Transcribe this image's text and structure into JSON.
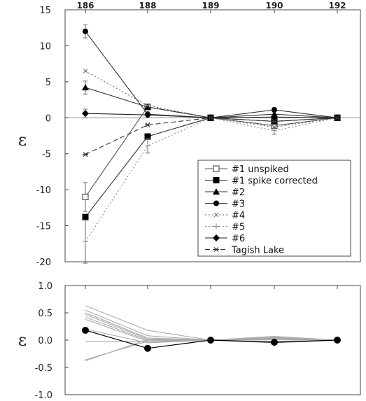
{
  "chart_data": [
    {
      "type": "line",
      "x": [
        186,
        188,
        189,
        190,
        192
      ],
      "x_tick_labels": [
        "186",
        "188",
        "189",
        "190",
        "192"
      ],
      "ylabel": "ε",
      "ylim": [
        -20,
        15
      ],
      "yticks": [
        15,
        10,
        5,
        0,
        -5,
        -10,
        -15,
        -20
      ],
      "legend": "center-right",
      "grid": false,
      "series": [
        {
          "name": "#1 unspiked",
          "marker": "square-open",
          "dash": "solid",
          "color": "#555555",
          "values": [
            -11.0,
            1.5,
            0,
            -1.1,
            0
          ],
          "error": [
            2.0,
            0.4,
            0,
            0.4,
            0
          ]
        },
        {
          "name": "#1 spike corrected",
          "marker": "square",
          "dash": "solid",
          "color": "#333333",
          "values": [
            -13.8,
            -2.6,
            0,
            -0.5,
            0
          ],
          "error": [
            0.4,
            0.3,
            0,
            0.3,
            0
          ]
        },
        {
          "name": "#2",
          "marker": "triangle",
          "dash": "solid",
          "color": "#333333",
          "values": [
            4.2,
            1.5,
            0,
            0.5,
            0
          ],
          "error": [
            0.9,
            0.3,
            0,
            0.3,
            0
          ]
        },
        {
          "name": "#3",
          "marker": "circle",
          "dash": "solid",
          "color": "#333333",
          "values": [
            12.0,
            0.5,
            0,
            1.1,
            0
          ],
          "error": [
            0.9,
            0.3,
            0,
            0.3,
            0
          ]
        },
        {
          "name": "#4",
          "marker": "x",
          "dash": "dotted",
          "color": "#666666",
          "values": [
            6.5,
            1.7,
            0,
            -1.3,
            0
          ],
          "error": [
            0,
            0,
            0,
            0,
            0
          ]
        },
        {
          "name": "#5",
          "marker": "plus",
          "dash": "dotted",
          "color": "#888888",
          "values": [
            -17.2,
            -3.9,
            0,
            -1.8,
            0
          ],
          "error": [
            3.0,
            1.0,
            0,
            0.5,
            0
          ]
        },
        {
          "name": "#6",
          "marker": "diamond",
          "dash": "solid",
          "color": "#222222",
          "values": [
            0.6,
            0.4,
            0,
            0.1,
            0
          ],
          "error": [
            0.6,
            0.3,
            0,
            0.3,
            0
          ]
        },
        {
          "name": "Tagish Lake",
          "marker": "star",
          "dash": "dashed",
          "color": "#333333",
          "values": [
            -5.1,
            -1.0,
            0,
            -0.5,
            0
          ],
          "error": [
            0,
            0,
            0,
            0,
            0
          ]
        }
      ]
    },
    {
      "type": "line",
      "x": [
        186,
        188,
        189,
        190,
        192
      ],
      "ylabel": "ε",
      "ylim": [
        -1.0,
        1.0
      ],
      "yticks": [
        "1.0",
        "0.5",
        "0.0",
        "-0.5",
        "-1.0"
      ],
      "grid": false,
      "gray_color": "#aaaaaa",
      "gray_series": [
        [
          0.63,
          0.18,
          0,
          0.07,
          0
        ],
        [
          0.55,
          0.08,
          0,
          0.05,
          0
        ],
        [
          0.5,
          0.04,
          0,
          0.02,
          0
        ],
        [
          0.47,
          0.02,
          0,
          -0.03,
          0
        ],
        [
          0.42,
          0.0,
          0,
          0.04,
          0
        ],
        [
          0.38,
          -0.02,
          0,
          -0.05,
          0
        ],
        [
          0.2,
          -0.05,
          0,
          0.03,
          0
        ],
        [
          -0.02,
          -0.03,
          0,
          0.01,
          0
        ],
        [
          -0.36,
          -0.02,
          0,
          -0.02,
          0
        ],
        [
          -0.38,
          0.01,
          0,
          0.05,
          0
        ]
      ],
      "highlight": {
        "color": "#000000",
        "marker": "circle",
        "values": [
          0.18,
          -0.15,
          0,
          -0.04,
          0
        ]
      }
    }
  ]
}
